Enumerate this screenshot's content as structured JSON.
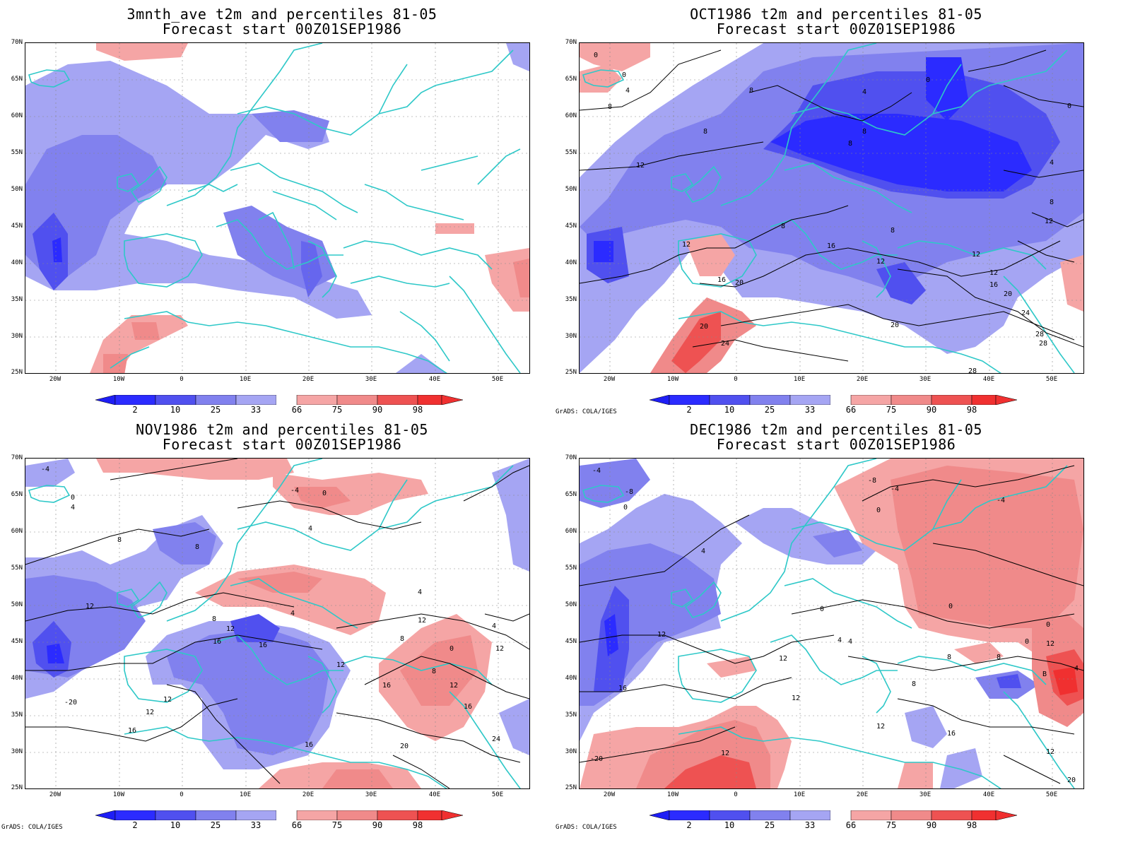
{
  "colors": {
    "blue_98": "#1e1ef5",
    "blue_2_10": "#2b2bff",
    "blue_10_25": "#5050ef",
    "blue_25_33": "#8181ee",
    "blue_light": "#a5a5f3",
    "red_light": "#f5a5a5",
    "red_66_75": "#f08a8a",
    "red_75_90": "#ee5252",
    "red_90_98": "#f03030",
    "coast": "#2ec8c8",
    "contour": "#000000"
  },
  "axes": {
    "lat_labels": [
      "70N",
      "65N",
      "60N",
      "55N",
      "50N",
      "45N",
      "40N",
      "35N",
      "30N",
      "25N"
    ],
    "lon_labels": [
      "20W",
      "10W",
      "0",
      "10E",
      "20E",
      "30E",
      "40E",
      "50E"
    ]
  },
  "colorbar": {
    "labels": [
      "2",
      "10",
      "25",
      "33",
      "66",
      "75",
      "90",
      "98"
    ]
  },
  "credit": "GrADS: COLA/IGES",
  "panels": [
    {
      "title": "3mnth_ave t2m and percentiles 81-05",
      "subtitle": "Forecast start 00Z01SEP1986",
      "credit": ""
    },
    {
      "title": "OCT1986 t2m and percentiles 81-05",
      "subtitle": "Forecast start 00Z01SEP1986",
      "credit": "GrADS: COLA/IGES"
    },
    {
      "title": "NOV1986 t2m and percentiles 81-05",
      "subtitle": "Forecast start 00Z01SEP1986",
      "credit": "GrADS: COLA/IGES"
    },
    {
      "title": "DEC1986 t2m and percentiles 81-05",
      "subtitle": "Forecast start 00Z01SEP1986",
      "credit": "GrADS: COLA/IGES"
    }
  ],
  "contour_labels": {
    "oct": [
      "0",
      "4",
      "8",
      "8",
      "8",
      "4",
      "8",
      "12",
      "8",
      "8",
      "12",
      "16",
      "12",
      "16",
      "20",
      "12",
      "16",
      "20",
      "20",
      "24",
      "12",
      "8",
      "16",
      "20",
      "24",
      "28",
      "28",
      "4",
      "0"
    ],
    "nov": [
      "-4",
      "0",
      "4",
      "8",
      "8",
      "4",
      "-4",
      "0",
      "12",
      "12",
      "16",
      "16",
      "12",
      "8",
      "4",
      "4",
      "8",
      "12",
      "0",
      "12",
      "8",
      "12",
      "16",
      "-20",
      "12",
      "16",
      "20",
      "24",
      "16",
      "16",
      "4"
    ],
    "dec": [
      "-4",
      "-8",
      "0",
      "-8",
      "-4",
      "4",
      "0",
      "-4",
      "0",
      "4",
      "12",
      "16",
      "0",
      "4",
      "12",
      "4",
      "12",
      "8",
      "8",
      "8",
      "12",
      "0",
      "B",
      "4",
      "16",
      "12",
      "12",
      "20",
      "-20",
      "12"
    ]
  }
}
